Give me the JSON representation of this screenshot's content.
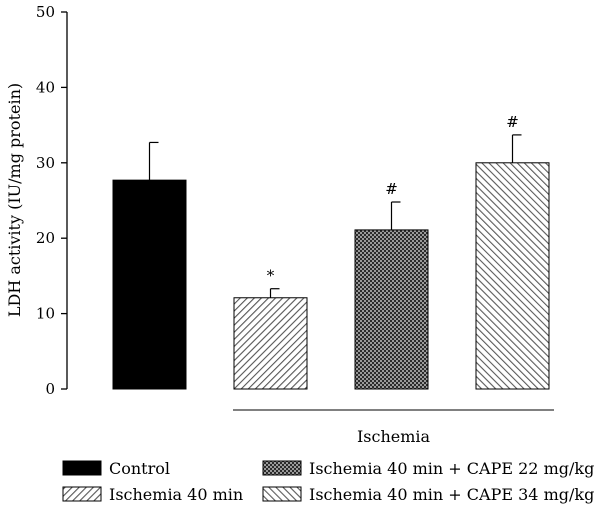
{
  "chart_data": {
    "type": "bar",
    "ylabel": "LDH activity (IU/mg protein)",
    "ylim": [
      0,
      50
    ],
    "yticks": [
      0,
      10,
      20,
      30,
      40,
      50
    ],
    "grid": false,
    "legend_placement": "bottom",
    "bars": [
      {
        "name": "Control",
        "value": 27.7,
        "error": 5.0,
        "annotation": "",
        "fill": "solid",
        "color": "#000000"
      },
      {
        "name": "Ischemia 40 min",
        "value": 12.1,
        "error": 1.2,
        "annotation": "*",
        "fill": "light-diagonal-hatch",
        "color": "#808080"
      },
      {
        "name": "Ischemia 40 min + CAPE 22 mg/kg",
        "value": 21.1,
        "error": 3.7,
        "annotation": "#",
        "fill": "dense-crosshatch",
        "color": "#404040"
      },
      {
        "name": "Ischemia 40 min + CAPE 34 mg/kg",
        "value": 30.0,
        "error": 3.7,
        "annotation": "#",
        "fill": "back-diagonal-hatch",
        "color": "#909090"
      }
    ],
    "group_bracket": {
      "label": "Ischemia",
      "span_bars": [
        1,
        3
      ]
    },
    "legend": [
      {
        "label": "Control",
        "fill": "solid"
      },
      {
        "label": "Ischemia 40 min",
        "fill": "light-diagonal-hatch"
      },
      {
        "label": "Ischemia 40 min + CAPE 22 mg/kg",
        "fill": "dense-crosshatch"
      },
      {
        "label": "Ischemia 40 min + CAPE 34 mg/kg",
        "fill": "back-diagonal-hatch"
      }
    ]
  }
}
